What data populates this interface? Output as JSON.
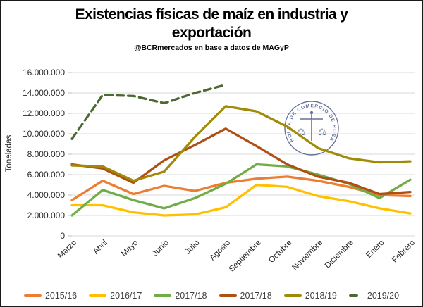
{
  "title": "Existencias físicas de maíz en industria y exportación",
  "title_lines": [
    "Existencias físicas de maíz en industria y",
    "exportación"
  ],
  "subtitle": "@BCRmercados en base a datos de MAGyP",
  "watermark": {
    "ring_text": "BOLSA DE COMERCIO DE ROSARIO",
    "color": "#3A4A7D"
  },
  "chart_data": {
    "type": "line",
    "title": "Existencias físicas de maíz en industria y exportación",
    "subtitle": "@BCRmercados en base a datos de MAGyP",
    "xlabel": "",
    "ylabel": "Toneladas",
    "ylim": [
      0,
      16000000
    ],
    "grid": true,
    "legend_position": "bottom",
    "categories": [
      "Marzo",
      "Abril",
      "Mayo",
      "Junio",
      "Julio",
      "Agosto",
      "Septiembre",
      "Octubre",
      "Noviembre",
      "Diciembre",
      "Enero",
      "Febrero"
    ],
    "y_ticks": [
      "0",
      "2.000.000",
      "4.000.000",
      "6.000.000",
      "8.000.000",
      "10.000.000",
      "12.000.000",
      "14.000.000",
      "16.000.000"
    ],
    "series": [
      {
        "name": "2015/16",
        "color": "#ED7D31",
        "dash": false,
        "values": [
          3500000,
          5400000,
          4100000,
          4900000,
          4400000,
          5200000,
          5600000,
          5800000,
          5400000,
          4800000,
          4000000,
          3900000
        ]
      },
      {
        "name": "2016/17",
        "color": "#FFC000",
        "dash": false,
        "values": [
          3000000,
          3000000,
          2300000,
          2000000,
          2100000,
          2800000,
          5000000,
          4800000,
          3900000,
          3400000,
          2700000,
          2200000
        ]
      },
      {
        "name": "2017/18",
        "color": "#70AD47",
        "dash": false,
        "values": [
          2000000,
          4500000,
          3500000,
          2700000,
          3700000,
          5100000,
          7000000,
          6800000,
          6000000,
          5100000,
          3700000,
          5500000
        ]
      },
      {
        "name": "2017/18",
        "color": "#AE4F14",
        "dash": false,
        "values": [
          7000000,
          6600000,
          5200000,
          7400000,
          8900000,
          10500000,
          8800000,
          7000000,
          5800000,
          5200000,
          4100000,
          4300000
        ]
      },
      {
        "name": "2018/19",
        "color": "#A18A06",
        "dash": false,
        "values": [
          6900000,
          6800000,
          5400000,
          6300000,
          9700000,
          12700000,
          12200000,
          10700000,
          8600000,
          7600000,
          7200000,
          7300000
        ]
      },
      {
        "name": "2019/20",
        "color": "#4B6932",
        "dash": true,
        "values": [
          9500000,
          13800000,
          13700000,
          13000000,
          14000000,
          14800000,
          null,
          null,
          null,
          null,
          null,
          null
        ]
      }
    ]
  }
}
